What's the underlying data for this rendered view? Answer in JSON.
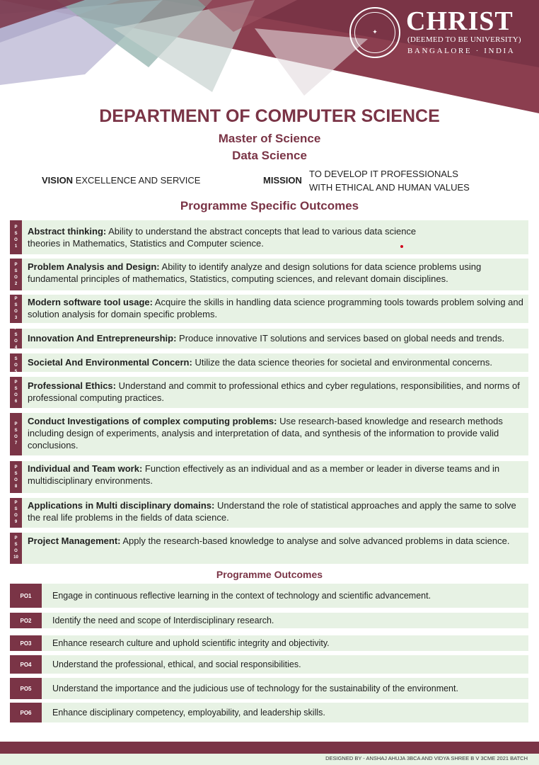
{
  "logo": {
    "name": "CHRIST",
    "sub": "(DEEMED TO BE UNIVERSITY)",
    "city": "BANGALORE · INDIA",
    "seal_text": "EXCELLENCE AND SERVICE"
  },
  "header": {
    "department": "DEPARTMENT OF COMPUTER SCIENCE",
    "degree": "Master of Science",
    "program": "Data Science",
    "vision_label": "VISION",
    "vision_text": "EXCELLENCE AND SERVICE",
    "mission_label": "MISSION",
    "mission_line1": "TO DEVELOP IT PROFESSIONALS",
    "mission_line2": "WITH ETHICAL AND HUMAN VALUES"
  },
  "pso_title": "Programme Specific Outcomes",
  "psos": [
    {
      "tag": "PSO1",
      "title": "Abstract thinking:",
      "text": " Ability to understand the abstract concepts that lead to various data science theories in Mathematics, Statistics and Computer science."
    },
    {
      "tag": "PSO2",
      "title": "Problem Analysis and Design:",
      "text": " Ability to identify analyze and design solutions for data science problems using fundamental principles of mathematics, Statistics, computing sciences, and relevant domain disciplines."
    },
    {
      "tag": "PSO3",
      "title": "Modern software tool usage:",
      "text": " Acquire the skills in handling data science programming tools towards problem solving and solution analysis for domain specific problems."
    },
    {
      "tag": "PSO4",
      "title": "Innovation And Entrepreneurship:",
      "text": " Produce innovative IT solutions and services based on global needs and trends."
    },
    {
      "tag": "PSO5",
      "title": "Societal And Environmental Concern:",
      "text": " Utilize the data science theories for societal and environmental concerns."
    },
    {
      "tag": "PSO6",
      "title": "Professional Ethics:",
      "text": " Understand and commit to professional ethics and cyber regulations, responsibilities, and norms of professional computing practices."
    },
    {
      "tag": "PSO7",
      "title": "Conduct Investigations of complex computing problems:",
      "text": " Use research-based knowledge and research methods including design of experiments, analysis and interpretation of data, and synthesis of the information to provide valid conclusions."
    },
    {
      "tag": "PSO8",
      "title": "Individual and Team work:",
      "text": " Function effectively as an individual and as a member or leader in diverse teams and in multidisciplinary environments."
    },
    {
      "tag": "PSO9",
      "title": "Applications in Multi disciplinary domains:",
      "text": " Understand the role of statistical approaches and apply the same to solve the real life problems in the fields of data science."
    },
    {
      "tag": "PSO10",
      "title": "Project Management:",
      "text": " Apply the research-based knowledge to analyse and solve advanced problems in data science."
    }
  ],
  "po_title": "Programme Outcomes",
  "pos": [
    {
      "tag": "PO1",
      "text": "Engage in continuous reflective learning in the context of technology and scientific advancement."
    },
    {
      "tag": "PO2",
      "text": "Identify the need and scope of Interdisciplinary research."
    },
    {
      "tag": "PO3",
      "text": "Enhance research culture and uphold scientific integrity and objectivity."
    },
    {
      "tag": "PO4",
      "text": "Understand the professional, ethical, and social responsibilities."
    },
    {
      "tag": "PO5",
      "text": "Understand the importance and the judicious use of technology for the sustainability of the environment."
    },
    {
      "tag": "PO6",
      "text": "Enhance disciplinary competency, employability, and leadership skills."
    }
  ],
  "footer": {
    "credit": "DESIGNED BY - ANSHAJ AHUJA 3BCA AND VIDYA SHREE B V 3CME 2021 BATCH"
  },
  "colors": {
    "accent": "#7a3446",
    "panel": "#e7f2e4"
  }
}
